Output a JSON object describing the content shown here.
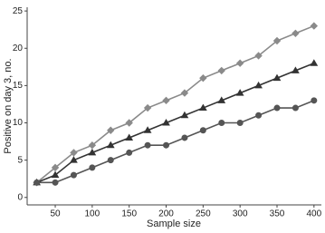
{
  "chart_data": {
    "type": "line",
    "x_label": "Sample size",
    "y_label": "Positive on day 3, no.",
    "x": [
      25,
      50,
      75,
      100,
      125,
      150,
      175,
      200,
      225,
      250,
      275,
      300,
      325,
      350,
      375,
      400
    ],
    "series": [
      {
        "color": "#8a8a8a",
        "marker": "diamond",
        "values": [
          2,
          4,
          6,
          7,
          9,
          10,
          12,
          13,
          14,
          16,
          17,
          18,
          19,
          21,
          22,
          23
        ]
      },
      {
        "color": "#333333",
        "marker": "triangle",
        "values": [
          2,
          3,
          5,
          6,
          7,
          8,
          9,
          10,
          11,
          12,
          13,
          14,
          15,
          16,
          17,
          18
        ]
      },
      {
        "color": "#555555",
        "marker": "circle",
        "values": [
          2,
          2,
          3,
          4,
          5,
          6,
          7,
          7,
          8,
          9,
          10,
          10,
          11,
          12,
          12,
          13
        ]
      }
    ],
    "xlim": [
      12,
      410
    ],
    "ylim": [
      -1,
      25.5
    ],
    "xticks": [
      50,
      100,
      150,
      200,
      250,
      300,
      350,
      400
    ],
    "yticks": [
      0,
      5,
      10,
      15,
      20,
      25
    ]
  }
}
